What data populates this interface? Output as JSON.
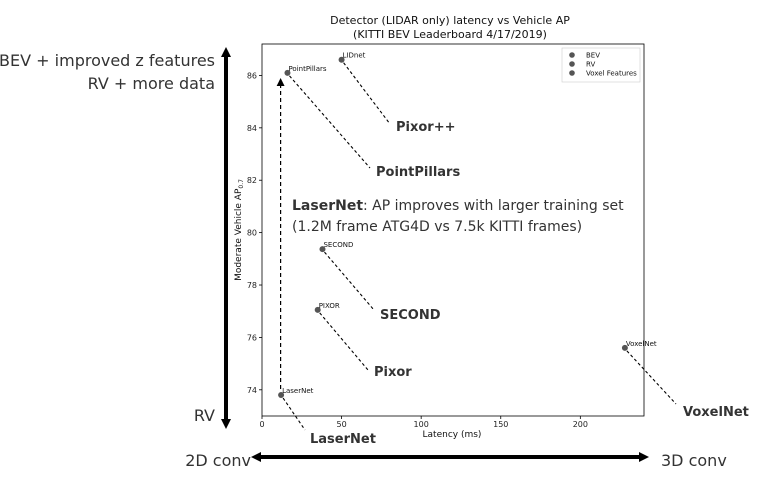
{
  "chart_data": {
    "type": "scatter",
    "title": "Detector (LIDAR only) latency vs Vehicle AP",
    "subtitle": "(KITTI BEV Leaderboard 4/17/2019)",
    "xlabel": "Latency (ms)",
    "ylabel": "Moderate Vehicle AP",
    "ylabel_sub": "0.7",
    "xlim": [
      0,
      240
    ],
    "ylim": [
      73,
      87.2
    ],
    "xticks": [
      0,
      50,
      100,
      150,
      200
    ],
    "yticks": [
      74,
      76,
      78,
      80,
      82,
      84,
      86
    ],
    "grid": false,
    "legend_position": "top-right",
    "legend": [
      "BEV",
      "RV",
      "Voxel Features"
    ],
    "points": [
      {
        "label": "LaserNet",
        "x": 12,
        "y": 73.8
      },
      {
        "label": "PIXOR",
        "x": 35,
        "y": 77.05
      },
      {
        "label": "SECOND",
        "x": 38,
        "y": 79.37
      },
      {
        "label": "PointPillars",
        "x": 16,
        "y": 86.1
      },
      {
        "label": "LIDnet",
        "x": 50,
        "y": 86.6
      },
      {
        "label": "VoxelNet",
        "x": 228,
        "y": 75.6
      }
    ],
    "callouts": [
      {
        "text": "Pixor++",
        "target": "LIDnet"
      },
      {
        "text": "PointPillars",
        "target": "PointPillars"
      },
      {
        "text": "SECOND",
        "target": "SECOND"
      },
      {
        "text": "Pixor",
        "target": "PIXOR"
      },
      {
        "text": "LaserNet",
        "target": "LaserNet"
      },
      {
        "text": "VoxelNet",
        "target": "VoxelNet"
      }
    ],
    "laser_annotation": {
      "bold": "LaserNet",
      "rest": ": AP improves with larger training set",
      "line2": "(1.2M frame ATG4D vs 7.5k KITTI frames)",
      "arrow_from_y": 73.8,
      "arrow_to_y": 85.9
    },
    "left_axis_labels": {
      "top1": "BEV + improved z features",
      "top2": "RV + more data",
      "bottom": "RV"
    },
    "bottom_axis_labels": {
      "left": "2D conv",
      "right": "3D conv"
    }
  }
}
